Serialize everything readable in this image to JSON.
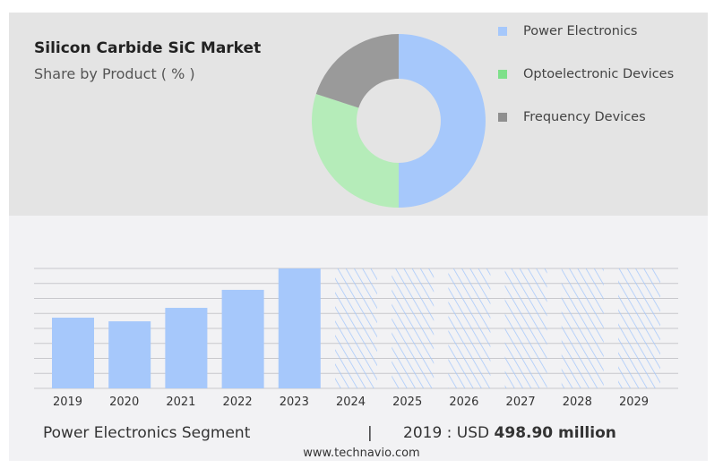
{
  "header": {
    "title": "Silicon Carbide SiC Market",
    "subtitle": "Share by Product ( % )"
  },
  "chart_data": [
    {
      "type": "pie",
      "title": "Share by Product ( % )",
      "labels": [
        "Power Electronics",
        "Optoelectronic Devices",
        "Frequency Devices"
      ],
      "values": [
        50,
        30,
        20
      ],
      "colors": [
        "#a6c8fb",
        "#b5ecb9",
        "#9a9a9a"
      ],
      "legend_colors": [
        "#a6c8fb",
        "#7ee08a",
        "#8f8f8f"
      ],
      "legend": "right"
    },
    {
      "type": "bar",
      "categories": [
        "2019",
        "2020",
        "2021",
        "2022",
        "2023",
        "2024",
        "2025",
        "2026",
        "2027",
        "2028",
        "2029"
      ],
      "values": [
        498.9,
        473,
        568,
        695,
        846,
        846,
        846,
        846,
        846,
        846,
        846
      ],
      "forecast": [
        false,
        false,
        false,
        false,
        false,
        true,
        true,
        true,
        true,
        true,
        true
      ],
      "ylim": [
        0,
        846
      ],
      "grid": true,
      "color": "#a6c8fb"
    }
  ],
  "footer": {
    "segment": "Power Electronics Segment",
    "separator": "|",
    "year_label": "2019 : USD",
    "value": "498.90 million",
    "website": "www.technavio.com"
  }
}
